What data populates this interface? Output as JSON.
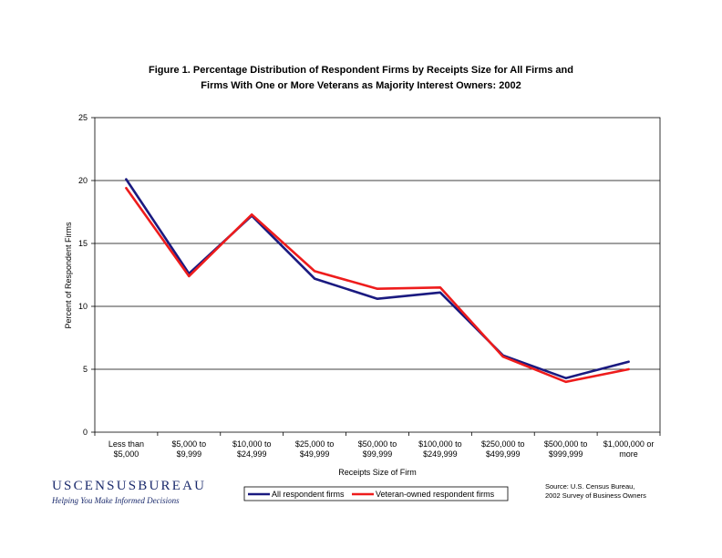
{
  "chart_data": {
    "type": "line",
    "title": "Figure 1.  Percentage Distribution of Respondent Firms by Receipts Size for All Firms and",
    "subtitle": "Firms With One or More Veterans as Majority Interest Owners:  2002",
    "xlabel": "Receipts Size of Firm",
    "ylabel": "Percent of Respondent Firms",
    "ylim": [
      0,
      25
    ],
    "yticks": [
      "0",
      "5",
      "10",
      "15",
      "20",
      "25"
    ],
    "grid": "horizontal",
    "legend_position": "bottom",
    "categories": [
      [
        "Less than",
        "$5,000"
      ],
      [
        "$5,000 to",
        "$9,999"
      ],
      [
        "$10,000 to",
        "$24,999"
      ],
      [
        "$25,000 to",
        "$49,999"
      ],
      [
        "$50,000 to",
        "$99,999"
      ],
      [
        "$100,000 to",
        "$249,999"
      ],
      [
        "$250,000 to",
        "$499,999"
      ],
      [
        "$500,000 to",
        "$999,999"
      ],
      [
        "$1,000,000 or",
        "more"
      ]
    ],
    "series": [
      {
        "name": "All respondent firms",
        "color": "#1a1a80",
        "values": [
          20.1,
          12.6,
          17.2,
          12.2,
          10.6,
          11.1,
          6.1,
          4.3,
          5.6
        ]
      },
      {
        "name": "Veteran-owned respondent firms",
        "color": "#ee1c1c",
        "values": [
          19.4,
          12.4,
          17.3,
          12.8,
          11.4,
          11.5,
          6.0,
          4.0,
          5.0
        ]
      }
    ]
  },
  "source": {
    "line1": "Source: U.S. Census Bureau,",
    "line2": "2002 Survey of Business Owners"
  },
  "logo": {
    "name": "USCENSUSBUREAU",
    "tagline": "Helping You Make Informed Decisions"
  }
}
